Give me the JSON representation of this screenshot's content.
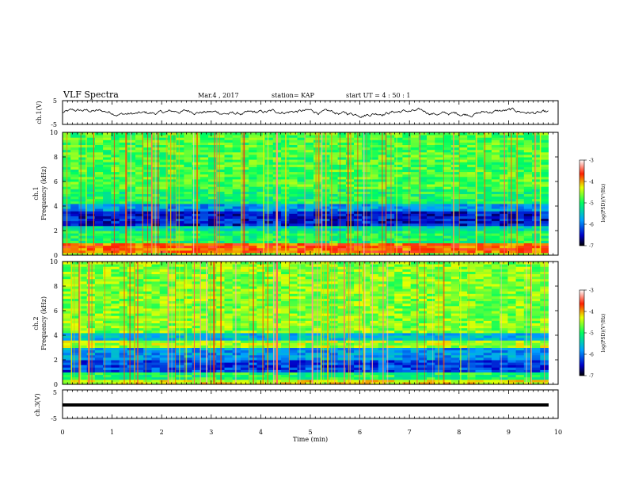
{
  "header": {
    "title": "VLF Spectra",
    "date": "Mar.4  , 2017",
    "station": "station= KAP",
    "start": "start  UT =   4 : 50 : 1"
  },
  "chart_data": [
    {
      "type": "line",
      "name": "ch.1 waveform",
      "ylabel": "ch.1(V)",
      "ylim": [
        -5,
        5
      ],
      "yticks": [
        "5",
        "-5"
      ],
      "xlim": [
        0,
        9.8
      ],
      "amplitude_range": [
        -2.5,
        2.5
      ]
    },
    {
      "type": "heatmap",
      "panel_label": "ch.1",
      "ylabel": "Frequency (kHz)",
      "ylim": [
        0,
        10
      ],
      "yticks": [
        "0",
        "2",
        "4",
        "6",
        "8",
        "10"
      ],
      "xlim": [
        0,
        9.8
      ],
      "colorbar": {
        "label": "log(PSD)(V²/Hz)",
        "range": [
          -7,
          -3
        ],
        "ticks": [
          "-3",
          "-4",
          "-5",
          "-6",
          "-7"
        ]
      },
      "bands_khz": [
        {
          "from": 0.0,
          "to": 0.3,
          "level": -4.5
        },
        {
          "from": 0.3,
          "to": 1.0,
          "level": -3.8
        },
        {
          "from": 1.0,
          "to": 2.0,
          "level": -5.0
        },
        {
          "from": 2.0,
          "to": 2.5,
          "level": -5.4
        },
        {
          "from": 2.5,
          "to": 3.6,
          "level": -6.4
        },
        {
          "from": 3.6,
          "to": 4.3,
          "level": -5.8
        },
        {
          "from": 4.3,
          "to": 5.5,
          "level": -5.0
        },
        {
          "from": 5.5,
          "to": 10.0,
          "level": -4.8
        }
      ]
    },
    {
      "type": "heatmap",
      "panel_label": "ch.2",
      "ylabel": "Frequency (kHz)",
      "ylim": [
        0,
        10
      ],
      "yticks": [
        "0",
        "2",
        "4",
        "6",
        "8",
        "10"
      ],
      "xlim": [
        0,
        9.8
      ],
      "colorbar": {
        "label": "log(PSD)(V²/Hz)",
        "range": [
          -7,
          -3
        ],
        "ticks": [
          "-3",
          "-4",
          "-5",
          "-6",
          "-7"
        ]
      },
      "bands_khz": [
        {
          "from": 0.0,
          "to": 0.4,
          "level": -4.3
        },
        {
          "from": 0.4,
          "to": 1.0,
          "level": -5.0
        },
        {
          "from": 1.0,
          "to": 2.0,
          "level": -6.2
        },
        {
          "from": 2.0,
          "to": 3.0,
          "level": -5.8
        },
        {
          "from": 3.0,
          "to": 3.6,
          "level": -4.5
        },
        {
          "from": 3.6,
          "to": 4.3,
          "level": -5.6
        },
        {
          "from": 4.3,
          "to": 10.0,
          "level": -4.6
        }
      ]
    },
    {
      "type": "line",
      "name": "ch.3 waveform",
      "ylabel": "ch.3(V)",
      "ylim": [
        -5,
        5
      ],
      "yticks": [
        "5",
        "-5"
      ],
      "xlim": [
        0,
        9.8
      ],
      "constant_value": 0
    }
  ],
  "xaxis": {
    "label": "Time (min)",
    "range": [
      0,
      10
    ],
    "ticks": [
      "0",
      "1",
      "2",
      "3",
      "4",
      "5",
      "6",
      "7",
      "8",
      "9",
      "10"
    ]
  }
}
